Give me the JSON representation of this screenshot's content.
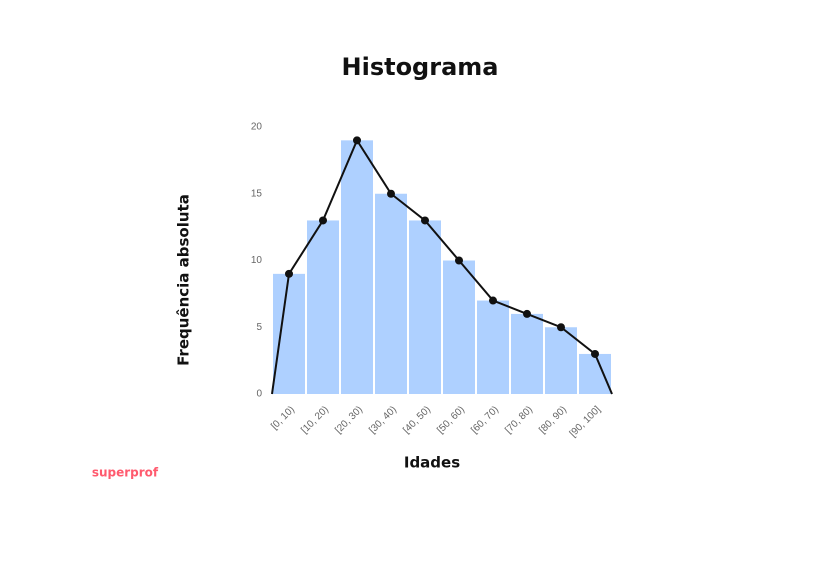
{
  "chart_data": {
    "type": "histogram",
    "title": "Histograma",
    "xlabel": "Idades",
    "ylabel": "Frequência absoluta",
    "bins": [
      0,
      10,
      20,
      30,
      40,
      50,
      60,
      70,
      80,
      90,
      100
    ],
    "bin_labels": [
      "[0, 10)",
      "[10, 20)",
      "[20, 30)",
      "[30, 40)",
      "[40, 50)",
      "[50, 60)",
      "[60, 70)",
      "[70, 80)",
      "[80, 90)",
      "[90, 100]"
    ],
    "values": [
      9,
      13,
      19,
      15,
      13,
      10,
      7,
      6,
      5,
      3
    ],
    "color": "#aed0ff",
    "line": {
      "color": "#111111",
      "x": [
        0,
        5,
        15,
        25,
        35,
        45,
        55,
        65,
        75,
        85,
        95,
        100
      ],
      "values": [
        0,
        9,
        13,
        19,
        15,
        13,
        10,
        7,
        6,
        5,
        3,
        0
      ]
    },
    "xlim": [
      0,
      100
    ],
    "ylim": [
      0,
      20
    ],
    "yticks": [
      0,
      5,
      10,
      15,
      20
    ],
    "grid": false
  },
  "brand": "superprof"
}
